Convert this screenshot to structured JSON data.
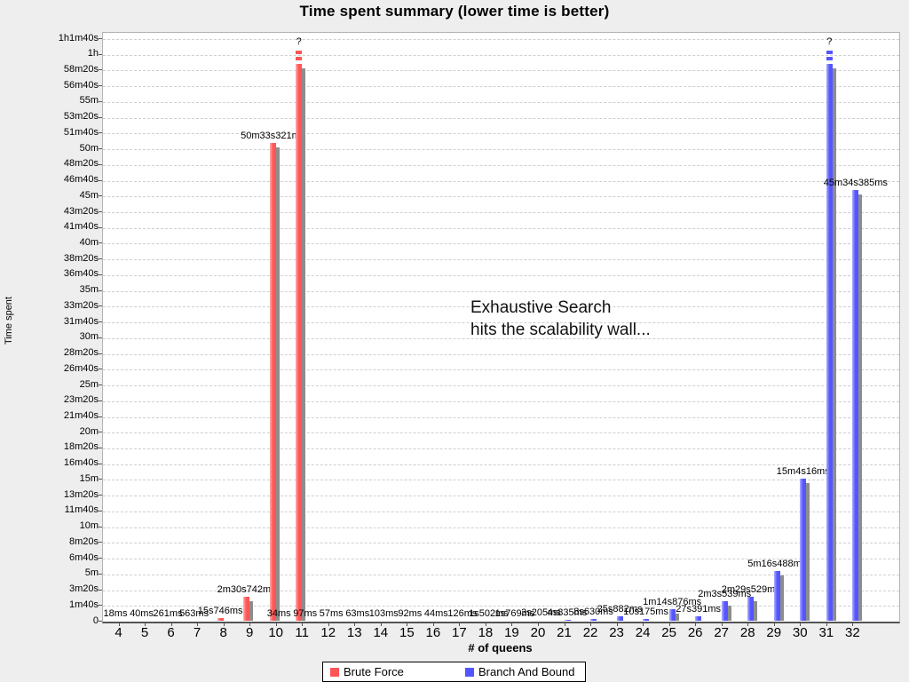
{
  "page": {
    "background": "#eeeeee"
  },
  "chart_data": {
    "type": "bar",
    "title": "Time spent summary (lower time is better)",
    "xlabel": "# of queens",
    "ylabel": "Time spent",
    "annotation": {
      "line1": "Exhaustive Search",
      "line2": "hits the scalability wall..."
    },
    "legend_position": "bottom",
    "grid": "horizontal-dashed",
    "categories": [
      4,
      5,
      6,
      7,
      8,
      9,
      10,
      11,
      12,
      13,
      14,
      15,
      16,
      17,
      18,
      19,
      20,
      21,
      22,
      23,
      24,
      25,
      26,
      27,
      28,
      29,
      30,
      31,
      32
    ],
    "y_axis": {
      "max_seconds": 3700,
      "tick_step_seconds": 100,
      "tick_labels": [
        "0",
        "1m40s",
        "3m20s",
        "5m",
        "6m40s",
        "8m20s",
        "10m",
        "11m40s",
        "13m20s",
        "15m",
        "16m40s",
        "18m20s",
        "20m",
        "21m40s",
        "23m20s",
        "25m",
        "26m40s",
        "28m20s",
        "30m",
        "31m40s",
        "33m20s",
        "35m",
        "36m40s",
        "38m20s",
        "40m",
        "41m40s",
        "43m20s",
        "45m",
        "46m40s",
        "48m20s",
        "50m",
        "51m40s",
        "53m20s",
        "55m",
        "56m40s",
        "58m20s",
        "1h",
        "1h1m40s"
      ]
    },
    "timeout_cutoff_label": "?",
    "series": [
      {
        "name": "Brute Force",
        "color": "#ff5555",
        "values_seconds": [
          0.018,
          0.04,
          0.261,
          0.563,
          15.746,
          150.742,
          3033.321,
          3600,
          null,
          null,
          null,
          null,
          null,
          null,
          null,
          null,
          null,
          null,
          null,
          null,
          null,
          null,
          null,
          null,
          null,
          null,
          null,
          null,
          null
        ],
        "labels": [
          "18ms",
          "40ms",
          "261ms",
          "563ms",
          "15s746ms",
          "2m30s742ms",
          "50m33s321ms",
          "?",
          null,
          null,
          null,
          null,
          null,
          null,
          null,
          null,
          null,
          null,
          null,
          null,
          null,
          null,
          null,
          null,
          null,
          null,
          null,
          null,
          null
        ]
      },
      {
        "name": "Branch And Bound",
        "color": "#5555ff",
        "values_seconds": [
          null,
          null,
          null,
          null,
          null,
          null,
          0.034,
          0.097,
          0.057,
          0.063,
          0.103,
          0.092,
          0.044,
          0.126,
          1.502,
          1.769,
          3.205,
          4.835,
          8.63,
          25.882,
          10.175,
          74.876,
          27.391,
          123.539,
          149.529,
          316.488,
          904.016,
          3600,
          2734.385
        ],
        "labels": [
          null,
          null,
          null,
          null,
          null,
          null,
          "34ms",
          "97ms",
          "57ms",
          "63ms",
          "103ms",
          "92ms",
          "44ms",
          "126ms",
          "1s502ms",
          "1s769ms",
          "3s205ms",
          "4s835ms",
          "8s630ms",
          "25s882ms",
          "10s175ms",
          "1m14s876ms",
          "27s391ms",
          "2m3s539ms",
          "2m29s529ms",
          "5m16s488ms",
          "15m4s16ms",
          "?",
          "45m34s385ms"
        ]
      }
    ]
  }
}
